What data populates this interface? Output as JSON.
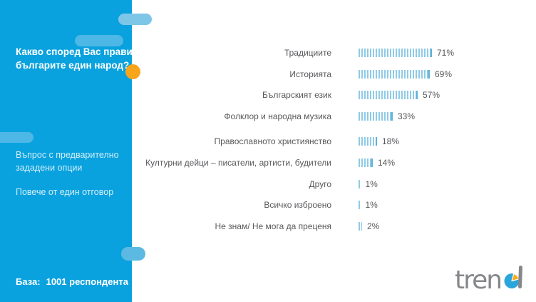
{
  "sidebar": {
    "background": "#0AA2DE",
    "accent_circle_color": "#F8A51B",
    "title_lines": [
      "Какво според Вас прави",
      "българите един народ?"
    ],
    "notes": [
      "Въпрос с предварително зададени опции",
      "Повече от един отговор"
    ],
    "base": {
      "label": "База:",
      "value": "1001 респондента"
    }
  },
  "chart_data": {
    "type": "bar",
    "orientation": "horizontal",
    "title": "Какво според Вас прави българите един народ?",
    "categories": [
      "Традициите",
      "Историята",
      "Българският език",
      "Фолклор и народна музика",
      "Православното християнство",
      "Културни дейци – писатели, артисти, будители",
      "Друго",
      "Всичко изброено",
      "Не знам/ Не мога да преценя"
    ],
    "values": [
      71,
      69,
      57,
      33,
      18,
      14,
      1,
      1,
      2
    ],
    "unit": "%",
    "xlim": [
      0,
      100
    ],
    "bar_style": "striped-vertical-hatch",
    "bar_color": "#8FCBE6",
    "bar_edge_color": "#5FB2DA",
    "label_color": "#57585B",
    "grid": false,
    "legend": false,
    "base_note": "База: 1001 респондента"
  },
  "logo": {
    "text": "trend",
    "wordmark_gray": "#85878A",
    "pie_blue": "#2BA5DC",
    "pie_yellow": "#F8AC1A"
  }
}
